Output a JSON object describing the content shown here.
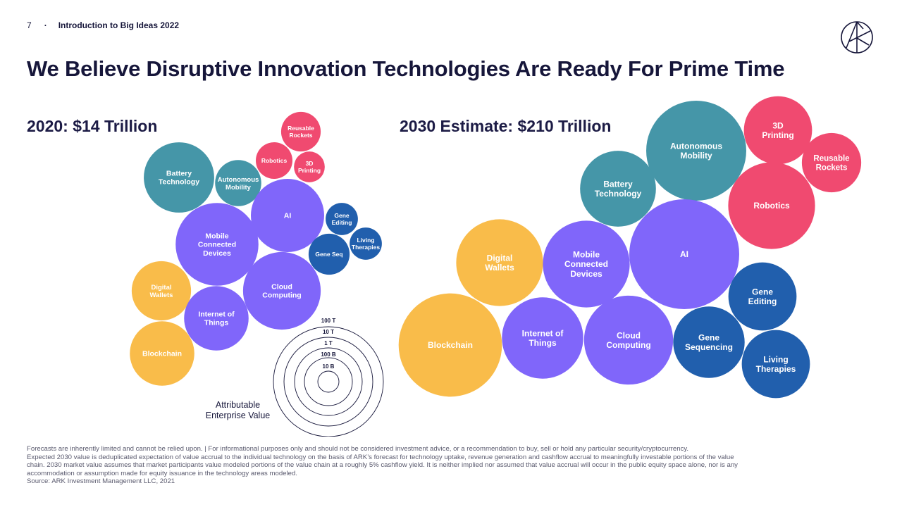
{
  "header": {
    "page_number": "7",
    "separator": "·",
    "deck_title": "Introduction to Big Ideas 2022",
    "logo": "ark-logo-icon"
  },
  "title": "We Believe Disruptive Innovation Technologies Are Ready For Prime Time",
  "chart_data": [
    {
      "type": "bubble",
      "title": "2020: $14 Trillion",
      "total": "$14 Trillion",
      "size_measure": "Attributable Enterprise Value",
      "legend_scale": [
        "100 T",
        "10 T",
        "1 T",
        "100 B",
        "10 B"
      ],
      "bubbles": [
        {
          "label": [
            "Reusable",
            "Rockets"
          ],
          "group": "space",
          "relative_size": 0.54
        },
        {
          "label": [
            "Robotics"
          ],
          "group": "space",
          "relative_size": 0.5
        },
        {
          "label": [
            "3D",
            "Printing"
          ],
          "group": "space",
          "relative_size": 0.42
        },
        {
          "label": [
            "Battery",
            "Technology"
          ],
          "group": "energy",
          "relative_size": 0.96
        },
        {
          "label": [
            "Autonomous",
            "Mobility"
          ],
          "group": "energy",
          "relative_size": 0.63
        },
        {
          "label": [
            "AI"
          ],
          "group": "computing",
          "relative_size": 1.0
        },
        {
          "label": [
            "Gene",
            "Editing"
          ],
          "group": "bio",
          "relative_size": 0.44
        },
        {
          "label": [
            "Living",
            "Therapies"
          ],
          "group": "bio",
          "relative_size": 0.44
        },
        {
          "label": [
            "Gene Seq"
          ],
          "group": "bio",
          "relative_size": 0.56
        },
        {
          "label": [
            "Mobile",
            "Connected",
            "Devices"
          ],
          "group": "computing",
          "relative_size": 1.13
        },
        {
          "label": [
            "Digital",
            "Wallets"
          ],
          "group": "fintech",
          "relative_size": 0.81
        },
        {
          "label": [
            "Cloud",
            "Computing"
          ],
          "group": "computing",
          "relative_size": 1.06
        },
        {
          "label": [
            "Internet of",
            "Things"
          ],
          "group": "computing",
          "relative_size": 0.88
        },
        {
          "label": [
            "Blockchain"
          ],
          "group": "fintech",
          "relative_size": 0.88
        }
      ]
    },
    {
      "type": "bubble",
      "title": "2030 Estimate: $210 Trillion",
      "total": "$210 Trillion",
      "bubbles": [
        {
          "label": [
            "3D",
            "Printing"
          ],
          "group": "space",
          "relative_size": 0.62
        },
        {
          "label": [
            "Reusable",
            "Rockets"
          ],
          "group": "space",
          "relative_size": 0.54
        },
        {
          "label": [
            "Autonomous",
            "Mobility"
          ],
          "group": "energy",
          "relative_size": 0.91
        },
        {
          "label": [
            "Battery",
            "Technology"
          ],
          "group": "energy",
          "relative_size": 0.69
        },
        {
          "label": [
            "Robotics"
          ],
          "group": "space",
          "relative_size": 0.79
        },
        {
          "label": [
            "Digital",
            "Wallets"
          ],
          "group": "fintech",
          "relative_size": 0.79
        },
        {
          "label": [
            "Mobile",
            "Connected",
            "Devices"
          ],
          "group": "computing",
          "relative_size": 0.79
        },
        {
          "label": [
            "AI"
          ],
          "group": "computing",
          "relative_size": 1.0
        },
        {
          "label": [
            "Gene",
            "Editing"
          ],
          "group": "bio",
          "relative_size": 0.62
        },
        {
          "label": [
            "Blockchain"
          ],
          "group": "fintech",
          "relative_size": 0.94
        },
        {
          "label": [
            "Internet of",
            "Things"
          ],
          "group": "computing",
          "relative_size": 0.74
        },
        {
          "label": [
            "Cloud",
            "Computing"
          ],
          "group": "computing",
          "relative_size": 0.81
        },
        {
          "label": [
            "Gene",
            "Sequencing"
          ],
          "group": "bio",
          "relative_size": 0.65
        },
        {
          "label": [
            "Living",
            "Therapies"
          ],
          "group": "bio",
          "relative_size": 0.62
        }
      ]
    }
  ],
  "colors": {
    "space": "#f04a70",
    "energy": "#4596a8",
    "computing": "#8066fa",
    "bio": "#215fad",
    "fintech": "#f9bc4a",
    "text_dark": "#16163a"
  },
  "legend": {
    "title_line1": "Attributable",
    "title_line2": "Enterprise Value"
  },
  "footnote": [
    "Forecasts are inherently limited and cannot be relied upon. | For informational purposes only and should not be considered investment advice, or a recommendation to buy, sell or hold any particular security/cryptocurrency.",
    "Expected 2030 value is deduplicated expectation of value accrual to the individual technology on the basis of ARK’s forecast for technology uptake, revenue generation and cashflow accrual to meaningfully investable portions of the value",
    "chain. 2030 market value assumes that market participants value modeled portions of the value chain at a  roughly 5% cashflow yield. It is neither implied nor assumed that value accrual will occur in the public equity space alone, nor is any",
    "accommodation or assumption made for equity issuance in the technology areas modeled.",
    "Source: ARK Investment Management LLC, 2021"
  ]
}
